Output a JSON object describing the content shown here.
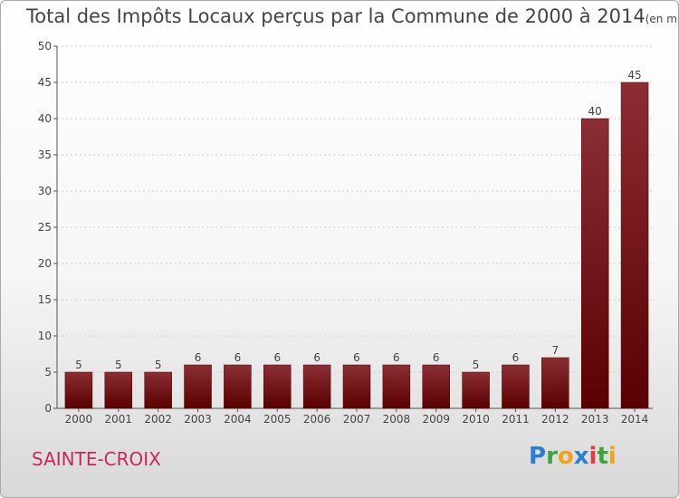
{
  "title": "Total des Impôts Locaux perçus par la Commune de 2000 à 2014",
  "unit": "(en milliers d'€)",
  "commune": "SAINTE-CROIX",
  "logo": {
    "letters": [
      "P",
      "r",
      "o",
      "x",
      "i",
      "t",
      "i"
    ],
    "colors": [
      "#2a7fd1",
      "#3aa63a",
      "#f0a21b",
      "#2a7fd1",
      "#e03b3b",
      "#3aa63a",
      "#f0a21b"
    ]
  },
  "chart_data": {
    "type": "bar",
    "categories": [
      "2000",
      "2001",
      "2002",
      "2003",
      "2004",
      "2005",
      "2006",
      "2007",
      "2008",
      "2009",
      "2010",
      "2011",
      "2012",
      "2013",
      "2014"
    ],
    "values": [
      5,
      5,
      5,
      6,
      6,
      6,
      6,
      6,
      6,
      6,
      5,
      6,
      7,
      40,
      45
    ],
    "ylim": [
      0,
      50
    ],
    "yticks": [
      0,
      5,
      10,
      15,
      20,
      25,
      30,
      35,
      40,
      45,
      50
    ],
    "bar_color_top": "#8b2e34",
    "bar_color_bottom": "#5a0000",
    "grid": true,
    "data_labels": true
  }
}
